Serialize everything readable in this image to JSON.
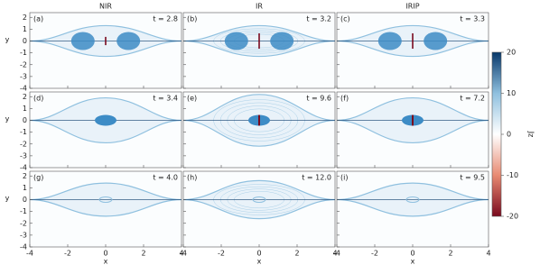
{
  "chart_data": {
    "type": "heatmap",
    "columns": [
      "NIR",
      "IR",
      "IRIP"
    ],
    "panels": [
      {
        "label": "(a)",
        "time": "t = 2.8"
      },
      {
        "label": "(b)",
        "time": "t = 3.2"
      },
      {
        "label": "(c)",
        "time": "t = 3.3"
      },
      {
        "label": "(d)",
        "time": "t = 3.4"
      },
      {
        "label": "(e)",
        "time": "t = 9.6"
      },
      {
        "label": "(f)",
        "time": "t = 7.2"
      },
      {
        "label": "(g)",
        "time": "t = 4.0"
      },
      {
        "label": "(h)",
        "time": "t = 12.0"
      },
      {
        "label": "(i)",
        "time": "t = 9.5"
      }
    ],
    "x_label": "x",
    "y_label": "y",
    "xlim": [
      -4,
      4
    ],
    "xticks": [
      -4,
      -2,
      0,
      2,
      4
    ],
    "ylim": [
      -4,
      2.4
    ],
    "yticks": [
      2,
      1,
      0,
      -1,
      -2,
      -3,
      -4
    ],
    "colorbar": {
      "label": "Jz",
      "lim": [
        -20,
        20
      ],
      "ticks": [
        20,
        10,
        0,
        -10,
        -20
      ],
      "colors": [
        "#7a0a1e",
        "#e88a72",
        "#ffffff",
        "#8fc0df",
        "#08386a"
      ]
    }
  }
}
